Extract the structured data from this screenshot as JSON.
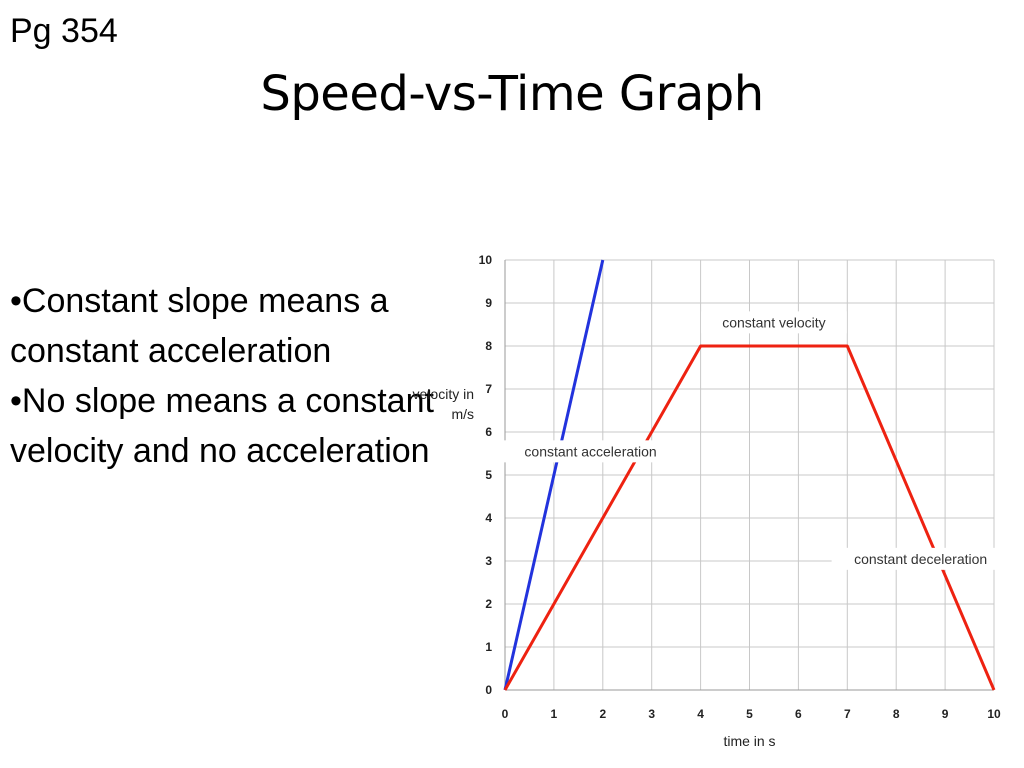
{
  "page_number": "Pg 354",
  "title": "Speed-vs-Time Graph",
  "bullets": [
    "•Constant slope means a constant acceleration",
    "•No slope means a constant velocity and no acceleration"
  ],
  "chart_data": {
    "type": "line",
    "xlabel": "time in s",
    "ylabel": [
      "velocity in",
      "m/s"
    ],
    "xlim": [
      0,
      10
    ],
    "ylim": [
      0,
      10
    ],
    "x_ticks": [
      0,
      1,
      2,
      3,
      4,
      5,
      6,
      7,
      8,
      9,
      10
    ],
    "y_ticks": [
      0,
      1,
      2,
      3,
      4,
      5,
      6,
      7,
      8,
      9,
      10
    ],
    "grid": true,
    "series": [
      {
        "color": "#2233dd",
        "points": [
          [
            0,
            0
          ],
          [
            2,
            10
          ]
        ]
      },
      {
        "color": "#ee2211",
        "points": [
          [
            0,
            0
          ],
          [
            4,
            8
          ],
          [
            7,
            8
          ],
          [
            10,
            0
          ]
        ]
      }
    ],
    "annotations": [
      {
        "text": "constant velocity",
        "x": 5.5,
        "y": 8.55
      },
      {
        "text": "constant acceleration",
        "x": 1.75,
        "y": 5.55
      },
      {
        "text": "constant deceleration",
        "x": 8.5,
        "y": 3.05
      }
    ]
  }
}
